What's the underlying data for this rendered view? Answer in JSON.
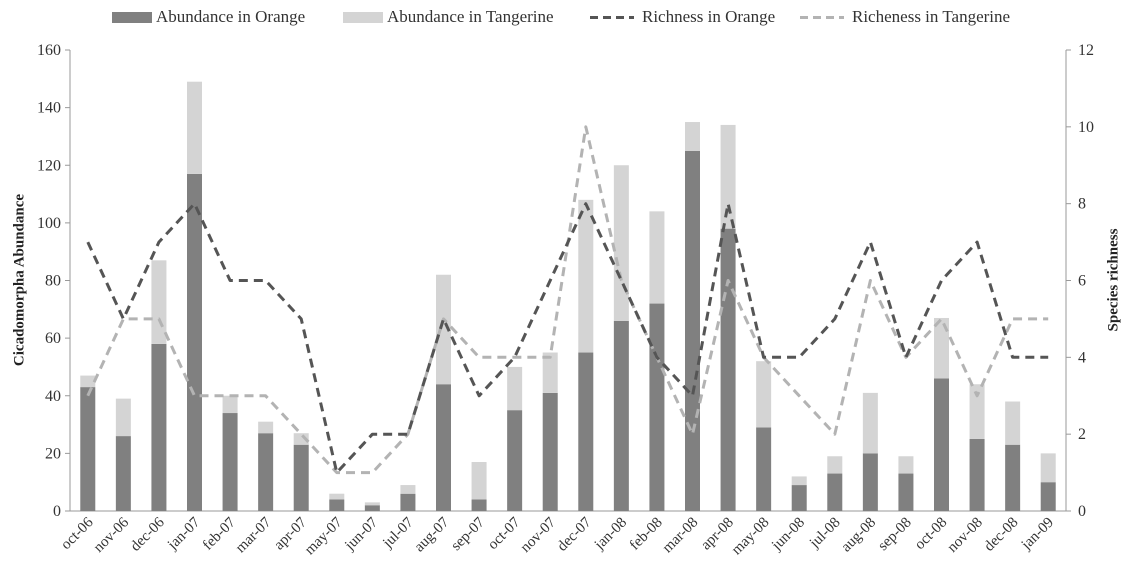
{
  "chart_data": {
    "type": "bar",
    "subtype": "stacked bar with dual-axis line overlay",
    "title": "",
    "ylabel_left": "Cicadomorpha Abundance",
    "ylabel_right": "Species richness",
    "xlabel": "",
    "ylim_left": [
      0,
      160
    ],
    "ylim_right": [
      0,
      12
    ],
    "yticks_left": [
      "0",
      "20",
      "40",
      "60",
      "80",
      "100",
      "120",
      "140",
      "160"
    ],
    "yticks_right": [
      "0",
      "2",
      "4",
      "6",
      "8",
      "10",
      "12"
    ],
    "grid": false,
    "legend_position": "top",
    "categories": [
      "oct-06",
      "nov-06",
      "dec-06",
      "jan-07",
      "feb-07",
      "mar-07",
      "apr-07",
      "may-07",
      "jun-07",
      "jul-07",
      "aug-07",
      "sep-07",
      "oct-07",
      "nov-07",
      "dec-07",
      "jan-08",
      "feb-08",
      "mar-08",
      "apr-08",
      "may-08",
      "jun-08",
      "jul-08",
      "aug-08",
      "sep-08",
      "oct-08",
      "nov-08",
      "dec-08",
      "jan-09"
    ],
    "bar_series": [
      {
        "name": "Abundance in Orange",
        "color": "#808080",
        "values": [
          43,
          26,
          58,
          117,
          34,
          27,
          23,
          4,
          2,
          6,
          44,
          4,
          35,
          41,
          55,
          66,
          72,
          125,
          98,
          29,
          9,
          13,
          20,
          13,
          46,
          25,
          23,
          10
        ]
      },
      {
        "name": "Abundance in Tangerine",
        "color": "#d4d4d4",
        "values": [
          4,
          13,
          29,
          32,
          6,
          4,
          4,
          2,
          1,
          3,
          38,
          13,
          15,
          14,
          53,
          54,
          32,
          10,
          36,
          23,
          3,
          6,
          21,
          6,
          21,
          19,
          15,
          10
        ]
      }
    ],
    "line_series": [
      {
        "name": "Richness in Orange",
        "color": "#555555",
        "axis": "right",
        "values": [
          7,
          5,
          7,
          8,
          6,
          6,
          5,
          1,
          2,
          2,
          5,
          3,
          4,
          6,
          8,
          6,
          4,
          3,
          8,
          4,
          4,
          5,
          7,
          4,
          6,
          7,
          4,
          4
        ]
      },
      {
        "name": "Richeness in Tangerine",
        "color": "#b3b3b3",
        "axis": "right",
        "values": [
          3,
          5,
          5,
          3,
          3,
          3,
          2,
          1,
          1,
          2,
          5,
          4,
          4,
          4,
          10,
          6,
          4,
          2,
          6,
          4,
          3,
          2,
          6,
          4,
          5,
          3,
          5,
          5
        ]
      }
    ]
  }
}
